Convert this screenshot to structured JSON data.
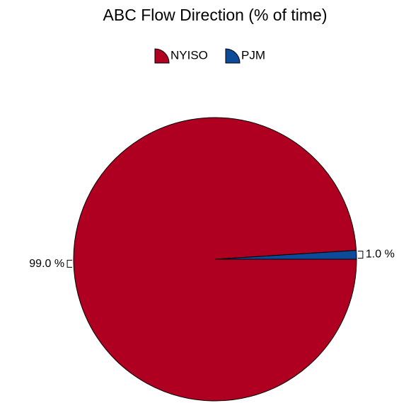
{
  "chart_data": {
    "type": "pie",
    "title": "ABC Flow Direction (% of time)",
    "categories": [
      "NYISO",
      "PJM"
    ],
    "values": [
      99.0,
      1.0
    ],
    "value_labels": [
      "99.0 %",
      "1.0 %"
    ],
    "colors": [
      "#b00021",
      "#0b4b9a"
    ]
  }
}
